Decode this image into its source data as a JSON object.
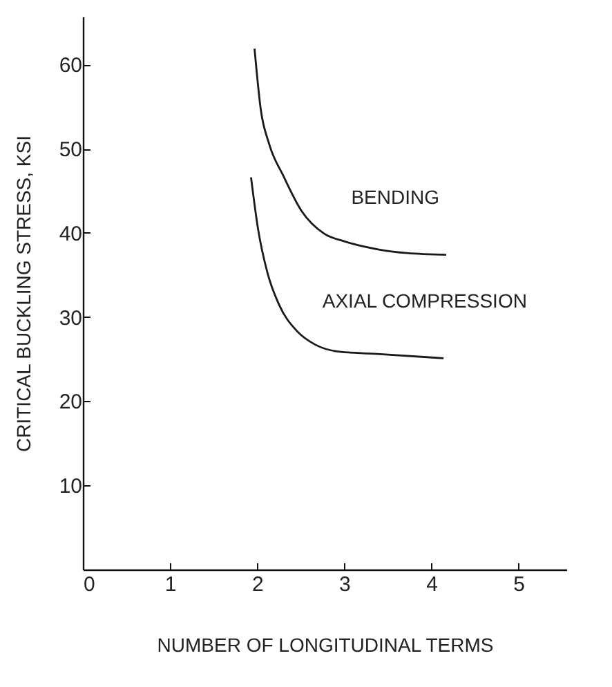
{
  "chart_data": {
    "type": "line",
    "xlabel": "NUMBER OF LONGITUDINAL TERMS",
    "ylabel": "CRITICAL BUCKLING STRESS, KSI",
    "xlim": [
      0,
      5.55
    ],
    "ylim": [
      0,
      65.7
    ],
    "xticks": [
      0,
      1,
      2,
      3,
      4,
      5
    ],
    "yticks": [
      10,
      20,
      30,
      40,
      50,
      60
    ],
    "grid": false,
    "legend": false,
    "marker": "none",
    "line_style": "solid",
    "series": [
      {
        "name": "BENDING",
        "color": "#1a1a1a",
        "x": [
          1.97,
          2.04,
          2.14,
          2.3,
          2.51,
          2.77,
          3.0,
          3.41,
          3.72,
          4.17
        ],
        "values": [
          61.9,
          54.8,
          50.5,
          46.8,
          42.6,
          39.9,
          39.0,
          38.0,
          37.6,
          37.4
        ]
      },
      {
        "name": "AXIAL COMPRESSION",
        "color": "#1a1a1a",
        "x": [
          1.93,
          2.01,
          2.12,
          2.25,
          2.46,
          2.67,
          2.93,
          3.41,
          4.14
        ],
        "values": [
          46.6,
          40.5,
          35.2,
          31.5,
          28.3,
          26.7,
          25.9,
          25.6,
          25.1
        ]
      }
    ]
  }
}
